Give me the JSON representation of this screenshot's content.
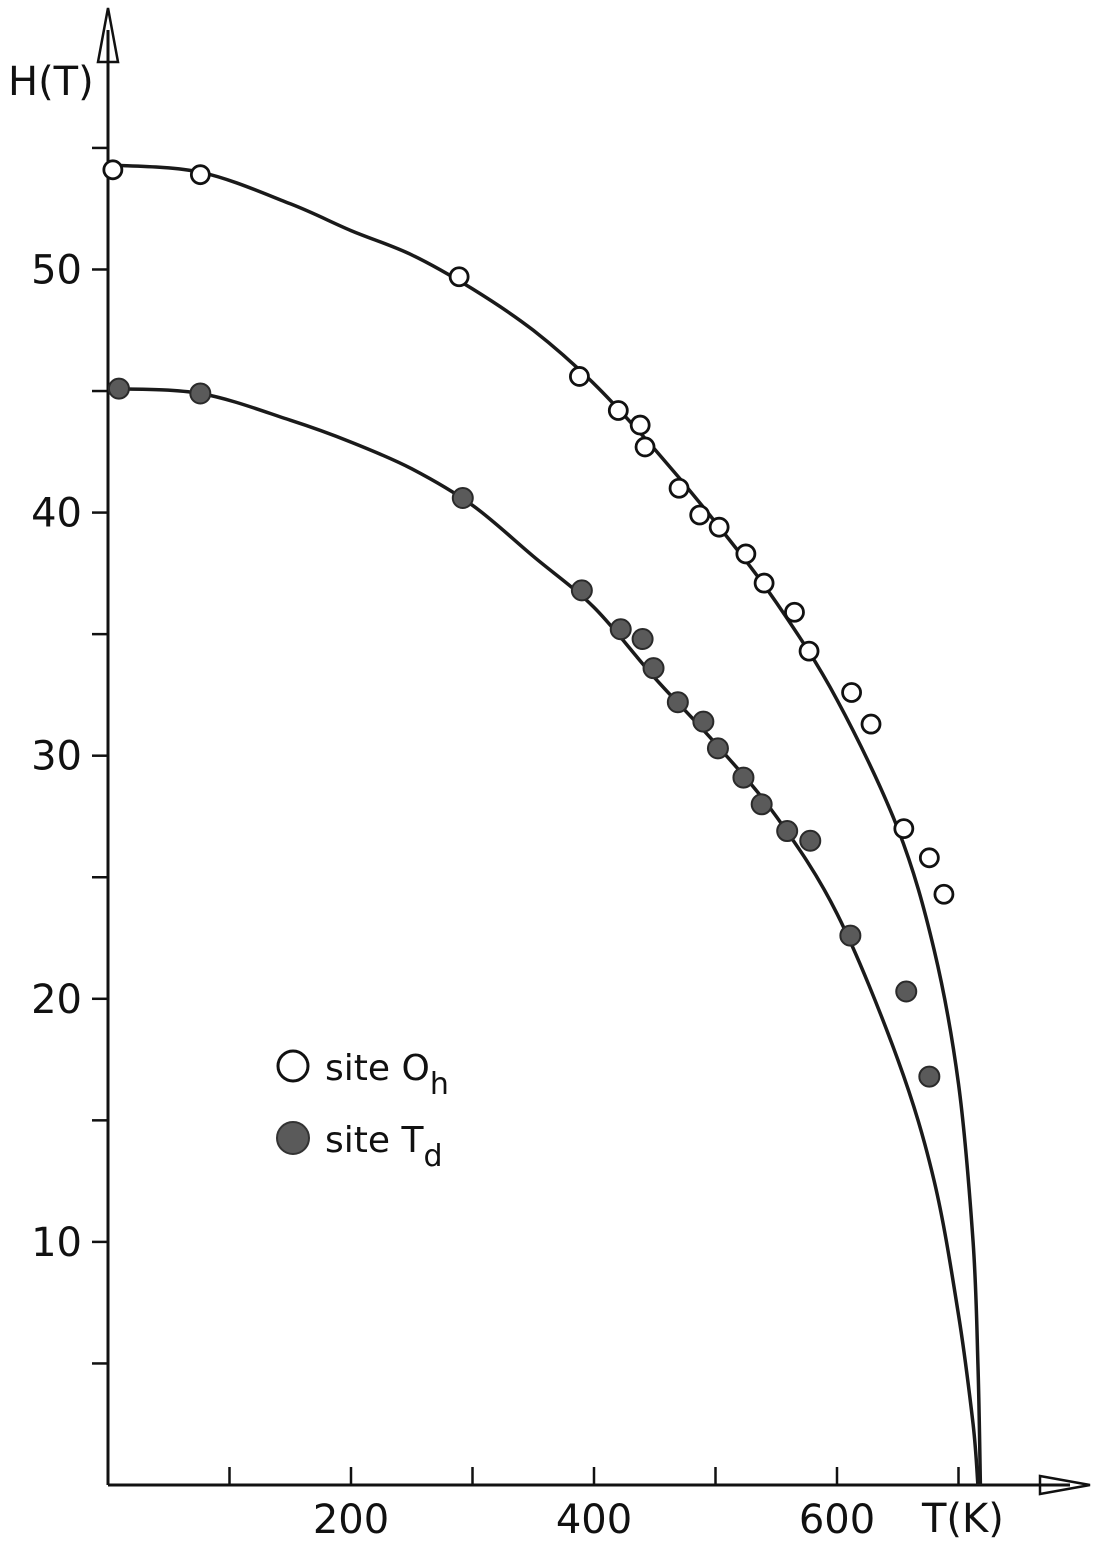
{
  "chart_data": {
    "type": "scatter",
    "xlabel": "T(K)",
    "ylabel": "H(T)",
    "xlim": [
      0,
      800
    ],
    "ylim": [
      0,
      58
    ],
    "x_ticks_major": [
      200,
      400,
      600
    ],
    "x_ticks_minor": [
      100,
      300,
      500,
      700
    ],
    "y_ticks_major": [
      10,
      20,
      30,
      40,
      50
    ],
    "y_ticks_minor": [
      5,
      15,
      25,
      35,
      45,
      55
    ],
    "colors": {
      "axis": "#111111",
      "curve": "#1a1a1a",
      "filled_marker": "#5a5a5a"
    },
    "series": [
      {
        "legend_main": "site O",
        "legend_sub": "h",
        "marker": "open-circle",
        "points": [
          [
            4,
            54.1
          ],
          [
            76,
            53.9
          ],
          [
            289,
            49.7
          ],
          [
            388,
            45.6
          ],
          [
            420,
            44.2
          ],
          [
            438,
            43.6
          ],
          [
            442,
            42.7
          ],
          [
            470,
            41.0
          ],
          [
            487,
            39.9
          ],
          [
            503,
            39.4
          ],
          [
            525,
            38.3
          ],
          [
            540,
            37.1
          ],
          [
            565,
            35.9
          ],
          [
            577,
            34.3
          ],
          [
            612,
            32.6
          ],
          [
            628,
            31.3
          ],
          [
            655,
            27.0
          ],
          [
            676,
            25.8
          ],
          [
            688,
            24.3
          ]
        ],
        "curve": [
          [
            0,
            54.3
          ],
          [
            76,
            54.0
          ],
          [
            150,
            52.7
          ],
          [
            200,
            51.6
          ],
          [
            250,
            50.6
          ],
          [
            300,
            49.2
          ],
          [
            350,
            47.5
          ],
          [
            400,
            45.3
          ],
          [
            450,
            42.6
          ],
          [
            500,
            39.6
          ],
          [
            550,
            36.3
          ],
          [
            600,
            32.3
          ],
          [
            650,
            27.0
          ],
          [
            680,
            22.0
          ],
          [
            700,
            16.5
          ],
          [
            712,
            10.0
          ],
          [
            716,
            5.0
          ],
          [
            718,
            0
          ]
        ]
      },
      {
        "legend_main": "site T",
        "legend_sub": "d",
        "marker": "filled-circle",
        "points": [
          [
            9,
            45.1
          ],
          [
            76,
            44.9
          ],
          [
            292,
            40.6
          ],
          [
            390,
            36.8
          ],
          [
            422,
            35.2
          ],
          [
            440,
            34.8
          ],
          [
            449,
            33.6
          ],
          [
            469,
            32.2
          ],
          [
            490,
            31.4
          ],
          [
            502,
            30.3
          ],
          [
            523,
            29.1
          ],
          [
            538,
            28.0
          ],
          [
            559,
            26.9
          ],
          [
            578,
            26.5
          ],
          [
            611,
            22.6
          ],
          [
            657,
            20.3
          ],
          [
            676,
            16.8
          ]
        ],
        "curve": [
          [
            0,
            45.1
          ],
          [
            76,
            44.9
          ],
          [
            150,
            43.8
          ],
          [
            200,
            42.9
          ],
          [
            250,
            41.8
          ],
          [
            300,
            40.3
          ],
          [
            350,
            38.2
          ],
          [
            400,
            36.1
          ],
          [
            450,
            33.2
          ],
          [
            500,
            30.5
          ],
          [
            550,
            27.5
          ],
          [
            600,
            23.5
          ],
          [
            650,
            17.5
          ],
          [
            680,
            12.5
          ],
          [
            700,
            7.0
          ],
          [
            712,
            2.5
          ],
          [
            716,
            0
          ]
        ]
      }
    ]
  }
}
